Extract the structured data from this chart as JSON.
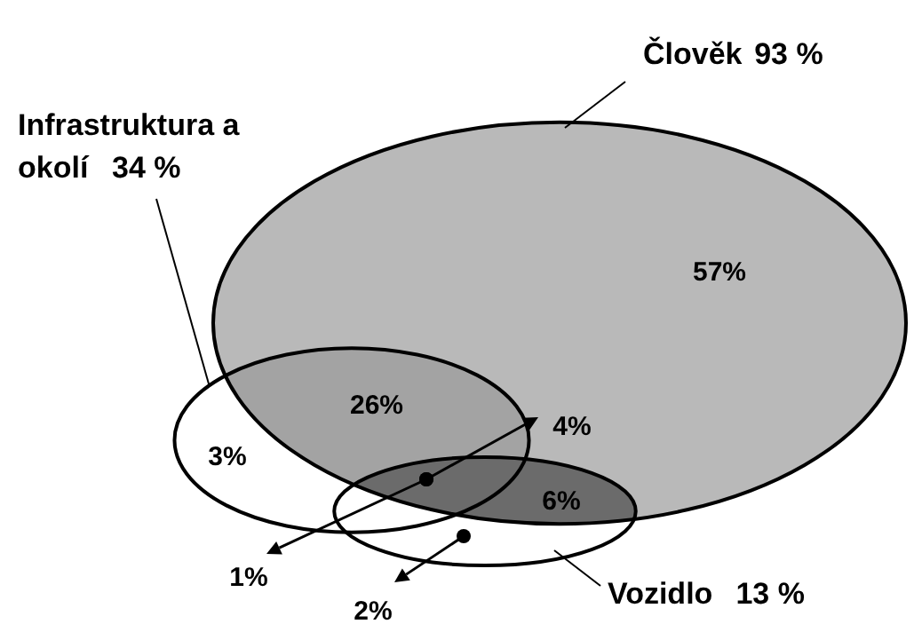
{
  "chart_data": {
    "type": "other",
    "categories": [
      "Člověk",
      "Infrastruktura a okolí",
      "Vozidlo"
    ],
    "values": [
      93,
      34,
      13
    ],
    "value_labels": [
      "93 %",
      "34 %",
      "13 %"
    ],
    "colors": [
      "#b9b9b9",
      "#a3a3a3",
      "#6b6b6b"
    ],
    "annotations": [
      "57%",
      "26%",
      "3%",
      "6%",
      "4%",
      "1%",
      "2%"
    ]
  }
}
